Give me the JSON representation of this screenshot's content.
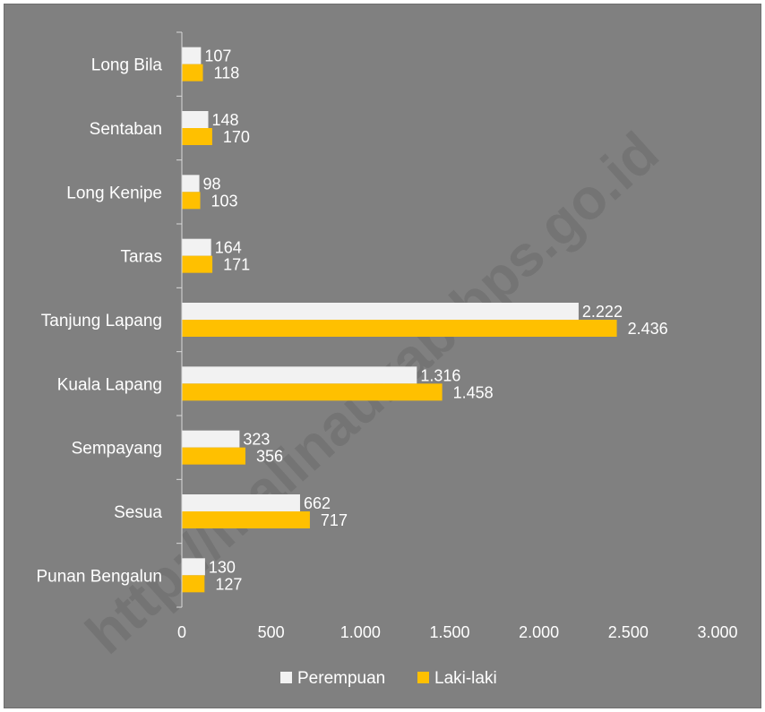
{
  "watermark": "http://malinaukab.bps.go.id",
  "chart_data": {
    "type": "bar",
    "orientation": "horizontal",
    "categories": [
      "Long Bila",
      "Sentaban",
      "Long Kenipe",
      "Taras",
      "Tanjung Lapang",
      "Kuala Lapang",
      "Sempayang",
      "Sesua",
      "Punan Bengalun"
    ],
    "series": [
      {
        "name": "Perempuan",
        "color": "#f2f2f2",
        "values": [
          107,
          148,
          98,
          164,
          2222,
          1316,
          323,
          662,
          130
        ],
        "labels": [
          "107",
          "148",
          "98",
          "164",
          "2.222",
          "1.316",
          "323",
          "662",
          "130"
        ]
      },
      {
        "name": "Laki-laki",
        "color": "#ffc000",
        "values": [
          118,
          170,
          103,
          171,
          2436,
          1458,
          356,
          717,
          127
        ],
        "labels": [
          "118",
          "170",
          "103",
          "171",
          "2.436",
          "1.458",
          "356",
          "717",
          "127"
        ]
      }
    ],
    "xlim": [
      0,
      3000
    ],
    "xticks": [
      0,
      500,
      1000,
      1500,
      2000,
      2500,
      3000
    ],
    "xtick_labels": [
      "0",
      "500",
      "1.000",
      "1.500",
      "2.000",
      "2.500",
      "3.000"
    ],
    "grid": false,
    "legend_position": "bottom",
    "background_color": "#808080",
    "title": "",
    "xlabel": "",
    "ylabel": ""
  }
}
